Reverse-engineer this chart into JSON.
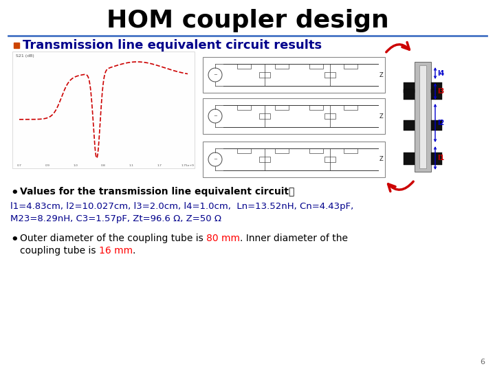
{
  "title": "HOM coupler design",
  "title_fontsize": 26,
  "title_color": "#000000",
  "subtitle": "Transmission line equivalent circuit results",
  "subtitle_fontsize": 13,
  "subtitle_fontweight": "bold",
  "subtitle_color": "#00008B",
  "subtitle_square_color": "#CC4400",
  "divider_color": "#4472C4",
  "bullet1_header": "Values for the transmission line equivalent circuit：",
  "bullet1_header_color": "#000000",
  "bullet1_header_bold": true,
  "bullet1_line1": "l1=4.83cm, l2=10.027cm, l3=2.0cm, l4=1.0cm,  Ln=13.52nH, Cn=4.43pF,",
  "bullet1_line2": "M23=8.29nH, C3=1.57pF, Zt=96.6 Ω, Z=50 Ω",
  "bullet1_color": "#00008B",
  "bullet2_part1": "Outer diameter of the coupling tube is ",
  "bullet2_red1": "80 mm",
  "bullet2_part2": ". Inner diameter of the",
  "bullet2_line2a": "coupling tube is ",
  "bullet2_red2": "16 mm",
  "bullet2_part3": ".",
  "bullet_color": "#000000",
  "bullet2_red_color": "#FF0000",
  "page_num": "6",
  "background_color": "#FFFFFF",
  "l1_label": "l1",
  "l2_label": "l2",
  "l3_label": "l3",
  "l4_label": "l4",
  "arrow_color": "#CC0000",
  "arrow_blue": "#0000CC"
}
